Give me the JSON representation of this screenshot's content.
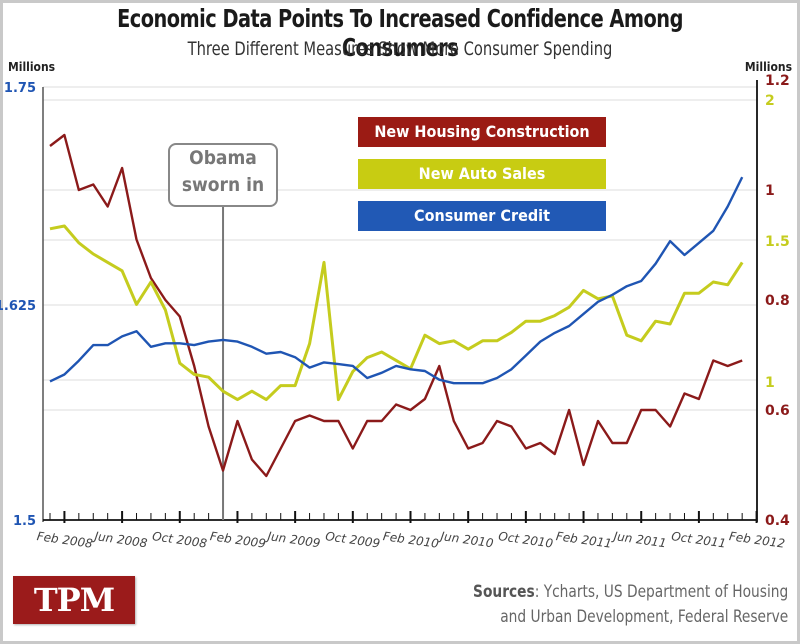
{
  "header": {
    "title": "Economic Data Points To Increased Confidence Among Consumers",
    "subtitle": "Three Different Measures Show More Consumer Spending",
    "left_unit": "Millions",
    "right_unit": "Millions"
  },
  "annotation": {
    "line1": "Obama",
    "line2": "sworn in",
    "date": "Jan 2009"
  },
  "footer": {
    "logo": "TPM",
    "sources_bold": "Sources",
    "sources_line1": ": Ycharts, US Department of Housing",
    "sources_line2": "and Urban Development, Federal Reserve"
  },
  "colors": {
    "housing": "#8b1a1a",
    "auto": "#c5cc1e",
    "credit": "#1f55b3",
    "grid": "#e8e8e8"
  },
  "chart_data": {
    "type": "line",
    "title": "Economic Data Points To Increased Confidence Among Consumers",
    "subtitle": "Three Different Measures Show More Consumer Spending",
    "x_start": "Jan 2008",
    "x_end": "Jan 2012",
    "x_step": "month",
    "xtick_labels": [
      "Feb 2008",
      "Jun 2008",
      "Oct 2008",
      "Feb 2009",
      "Jun 2009",
      "Oct 2009",
      "Feb 2010",
      "Jun 2010",
      "Oct 2010",
      "Feb 2011",
      "Jun 2011",
      "Oct 2011",
      "Feb 2012"
    ],
    "axes": {
      "left": {
        "label": "Millions",
        "series": "Consumer Credit",
        "range": [
          1.5,
          1.75
        ],
        "ticks": [
          "1.75",
          "1.625",
          "1.5"
        ]
      },
      "right_housing": {
        "label": "Millions",
        "series": "New Housing Construction",
        "range": [
          0.4,
          1.2
        ],
        "ticks": [
          "1.2",
          "1",
          "0.8",
          "0.6",
          "0.4"
        ]
      },
      "right_auto": {
        "series": "New Auto Sales",
        "range": [
          0.5,
          2.0
        ],
        "ticks": [
          "2",
          "1.5",
          "1"
        ]
      }
    },
    "legend": [
      "New Housing Construction",
      "New Auto Sales",
      "Consumer Credit"
    ],
    "legend_position": "top-center",
    "grid": true,
    "series": [
      {
        "name": "New Housing Construction",
        "axis": "right_housing",
        "values": [
          1.08,
          1.1,
          1.0,
          1.01,
          0.97,
          1.04,
          0.91,
          0.84,
          0.8,
          0.77,
          0.68,
          0.57,
          0.49,
          0.58,
          0.51,
          0.48,
          0.53,
          0.58,
          0.59,
          0.58,
          0.58,
          0.53,
          0.58,
          0.58,
          0.61,
          0.6,
          0.62,
          0.68,
          0.58,
          0.53,
          0.54,
          0.58,
          0.57,
          0.53,
          0.54,
          0.52,
          0.6,
          0.5,
          0.58,
          0.54,
          0.54,
          0.6,
          0.6,
          0.57,
          0.63,
          0.62,
          0.69,
          0.68,
          0.69
        ]
      },
      {
        "name": "New Auto Sales",
        "axis": "right_auto",
        "values": [
          1.54,
          1.55,
          1.49,
          1.45,
          1.42,
          1.39,
          1.27,
          1.35,
          1.25,
          1.06,
          1.02,
          1.01,
          0.96,
          0.93,
          0.96,
          0.93,
          0.98,
          0.98,
          1.13,
          1.42,
          0.93,
          1.03,
          1.08,
          1.1,
          1.07,
          1.04,
          1.16,
          1.13,
          1.14,
          1.11,
          1.14,
          1.14,
          1.17,
          1.21,
          1.21,
          1.23,
          1.26,
          1.32,
          1.29,
          1.3,
          1.16,
          1.14,
          1.21,
          1.2,
          1.31,
          1.31,
          1.35,
          1.34,
          1.42
        ]
      },
      {
        "name": "Consumer Credit",
        "axis": "left",
        "values": [
          1.58,
          1.584,
          1.592,
          1.601,
          1.601,
          1.606,
          1.609,
          1.6,
          1.602,
          1.602,
          1.601,
          1.603,
          1.604,
          1.603,
          1.6,
          1.596,
          1.597,
          1.594,
          1.588,
          1.591,
          1.59,
          1.589,
          1.582,
          1.585,
          1.589,
          1.587,
          1.586,
          1.581,
          1.579,
          1.579,
          1.579,
          1.582,
          1.587,
          1.595,
          1.603,
          1.608,
          1.612,
          1.619,
          1.626,
          1.63,
          1.635,
          1.638,
          1.648,
          1.661,
          1.653,
          1.66,
          1.667,
          1.681,
          1.698
        ]
      }
    ]
  }
}
